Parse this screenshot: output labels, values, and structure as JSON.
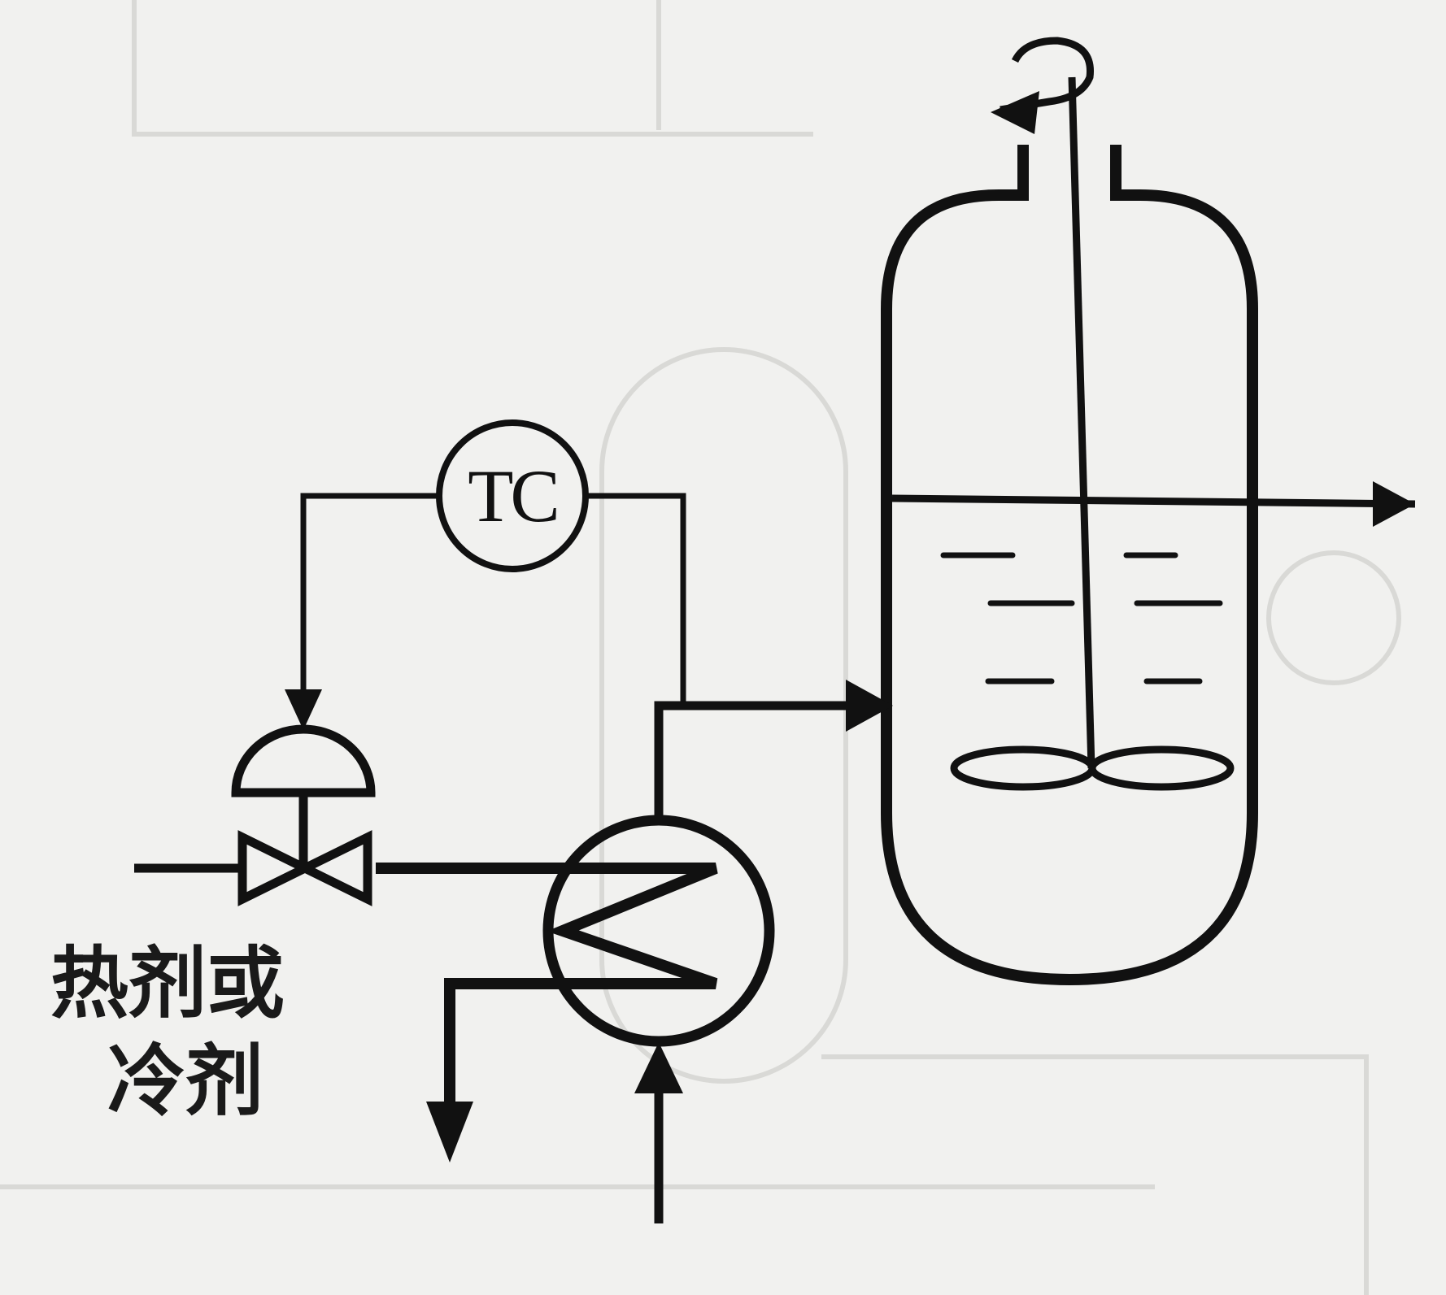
{
  "controller": {
    "label": "TC"
  },
  "medium": {
    "line1": "热剂或",
    "line2": "冷剂"
  },
  "colors": {
    "background": "#f1f1ef",
    "stroke": "#111111"
  }
}
